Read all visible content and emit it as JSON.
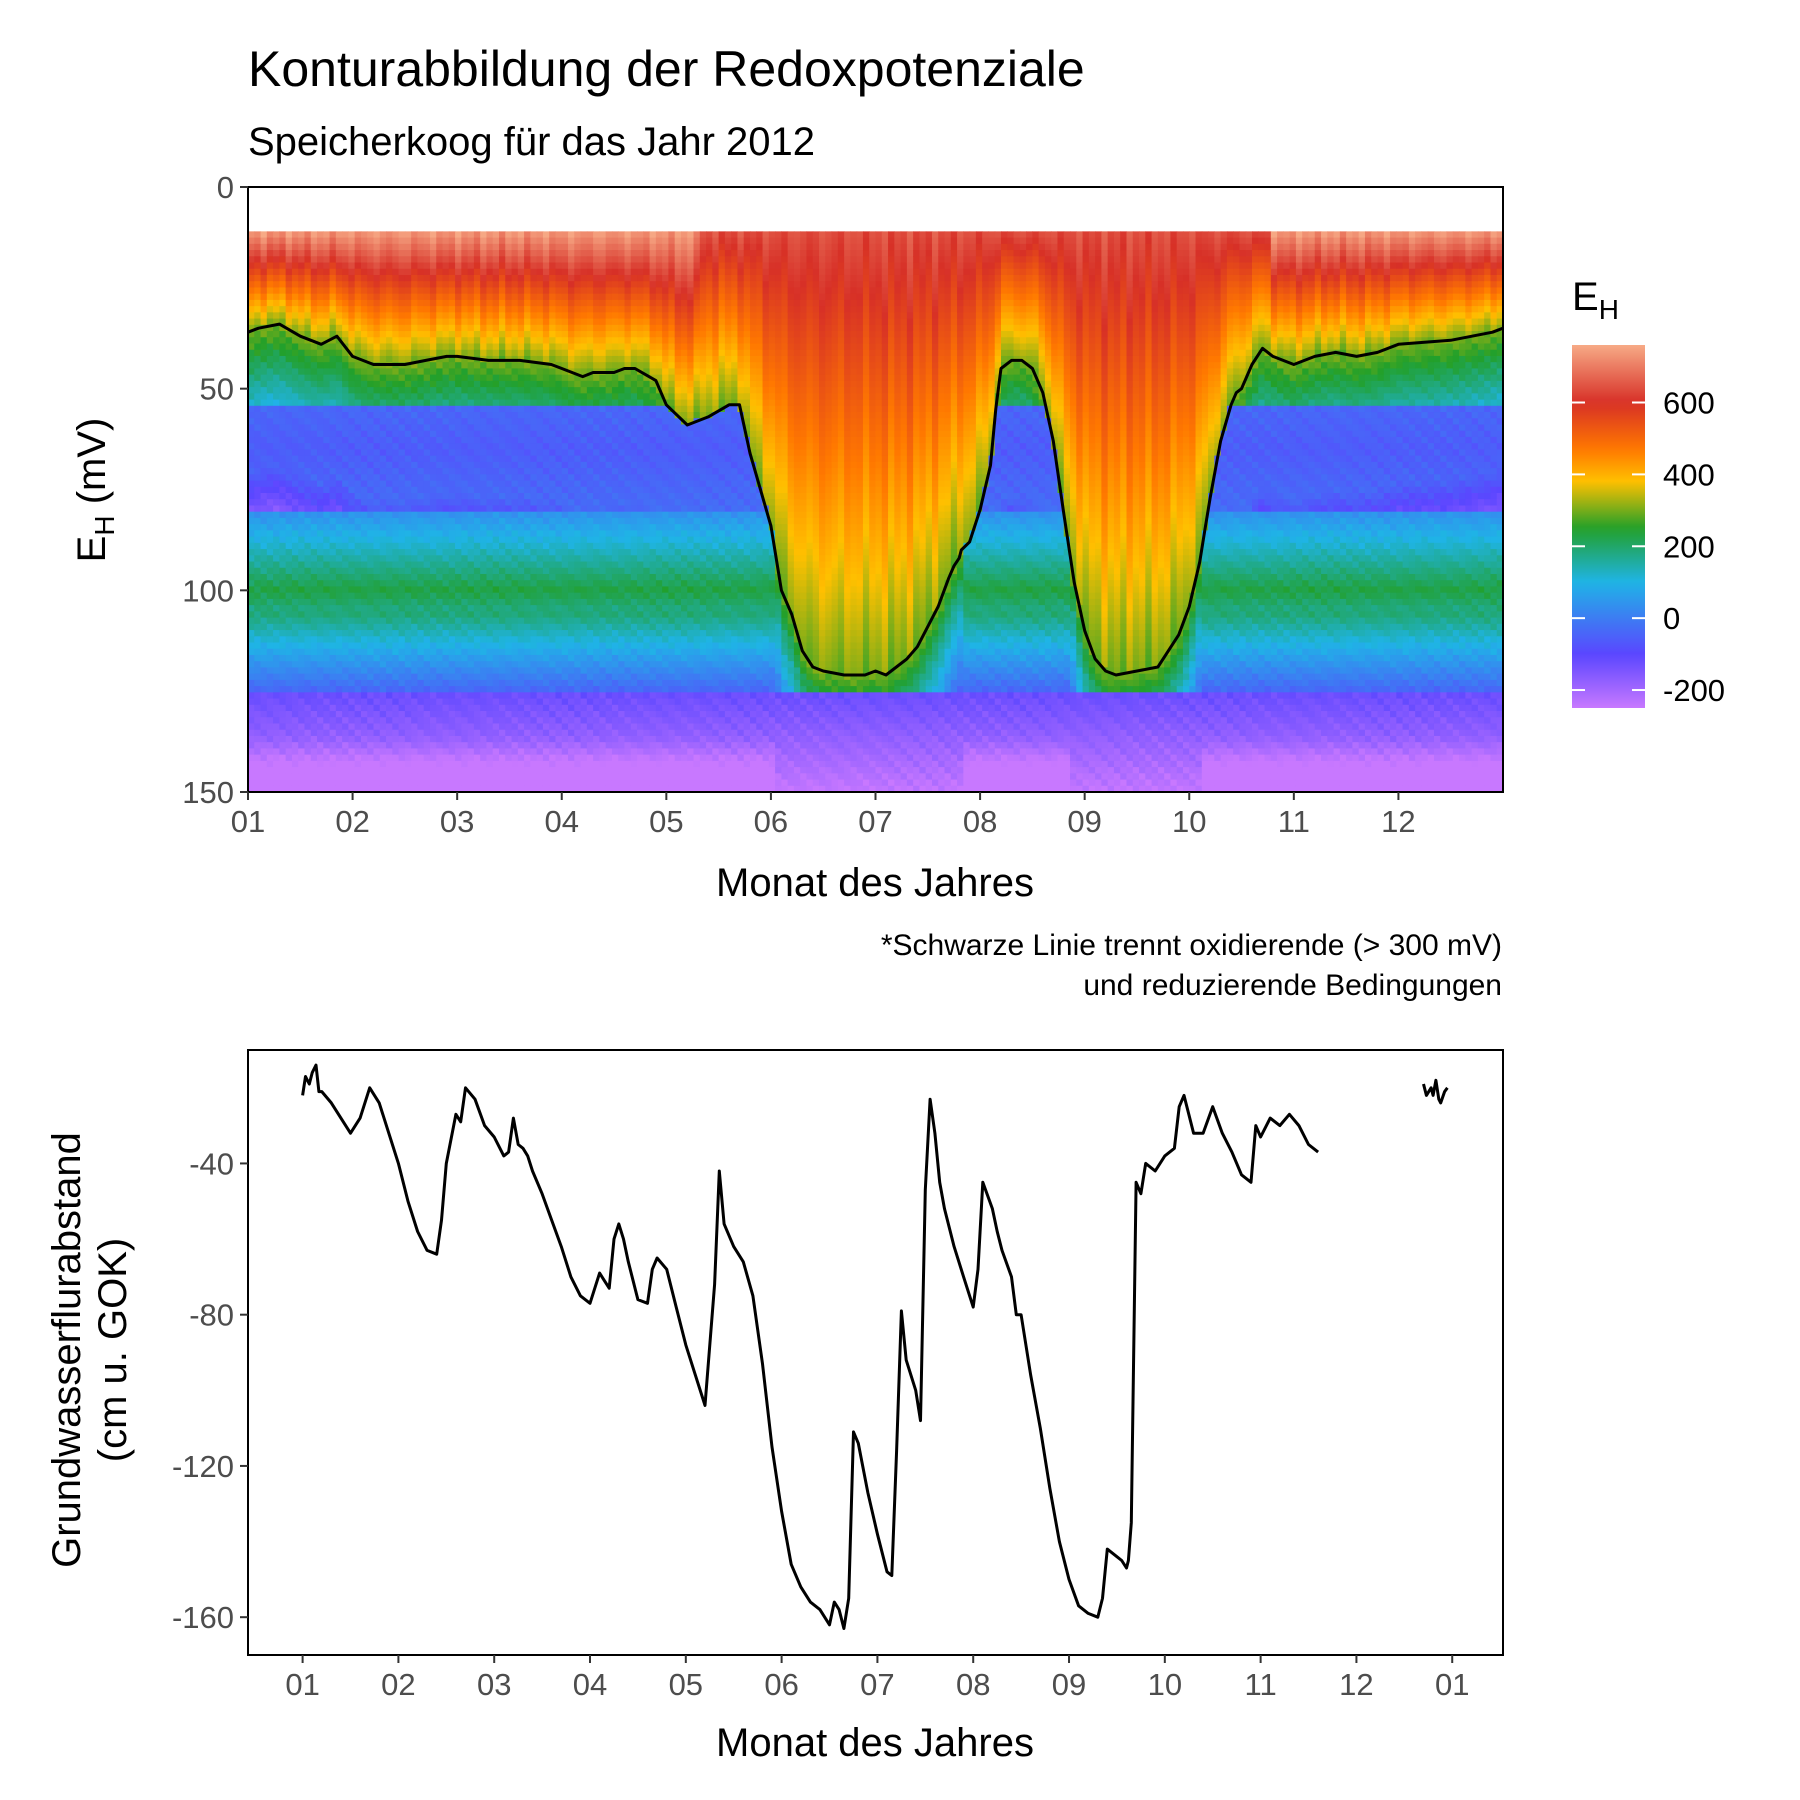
{
  "chart_data": [
    {
      "type": "heatmap",
      "title": "Konturabbildung der Redoxpotenziale",
      "subtitle": "Speicherkoog für das Jahr 2012",
      "xlabel": "Monat des Jahres",
      "ylabel_main": "E",
      "ylabel_sub": "H",
      "ylabel_unit": " (mV)",
      "caption_lines": [
        "*Schwarze Linie trennt oxidierende (> 300 mV)",
        "und reduzierende Bedingungen"
      ],
      "x_ticks": [
        "01",
        "02",
        "03",
        "04",
        "05",
        "06",
        "07",
        "08",
        "09",
        "10",
        "11",
        "12"
      ],
      "x_tick_values": [
        1,
        2,
        3,
        4,
        5,
        6,
        7,
        8,
        9,
        10,
        11,
        12
      ],
      "xlim": [
        1,
        13
      ],
      "y_ticks": [
        "0",
        "50",
        "100",
        "150"
      ],
      "y_tick_values": [
        0,
        50,
        100,
        150
      ],
      "ylim": [
        0,
        150
      ],
      "y_reversed": true,
      "data_depth_range": [
        11,
        150
      ],
      "legend": {
        "title_main": "E",
        "title_sub": "H",
        "labels": [
          "600",
          "400",
          "200",
          "0",
          "-200"
        ],
        "values": [
          600,
          400,
          200,
          0,
          -200
        ],
        "range": [
          -250,
          760
        ],
        "colors": [
          "#f7aa86",
          "#d73027",
          "#ff7800",
          "#ffc000",
          "#22a02a",
          "#1fb4e6",
          "#5a46ff",
          "#c878ff"
        ],
        "color_stops": [
          760,
          600,
          470,
          380,
          250,
          100,
          -100,
          -250
        ]
      },
      "contour_level": 300,
      "contour_line": {
        "x": [
          1.0,
          1.1,
          1.3,
          1.5,
          1.7,
          1.85,
          2.0,
          2.2,
          2.5,
          2.7,
          2.9,
          3.0,
          3.3,
          3.6,
          3.9,
          4.0,
          4.2,
          4.3,
          4.5,
          4.6,
          4.7,
          4.9,
          5.0,
          5.2,
          5.4,
          5.6,
          5.7,
          5.8,
          6.0,
          6.1,
          6.2,
          6.3,
          6.4,
          6.5,
          6.7,
          6.9,
          7.0,
          7.1,
          7.2,
          7.3,
          7.4,
          7.5,
          7.6,
          7.7,
          7.75,
          7.8,
          7.82,
          7.9,
          8.0,
          8.1,
          8.15,
          8.2,
          8.3,
          8.4,
          8.5,
          8.6,
          8.7,
          8.8,
          8.9,
          9.0,
          9.1,
          9.2,
          9.3,
          9.5,
          9.7,
          9.9,
          10.0,
          10.1,
          10.15,
          10.2,
          10.3,
          10.4,
          10.45,
          10.5,
          10.6,
          10.7,
          10.8,
          11.0,
          11.2,
          11.4,
          11.6,
          11.8,
          12.0,
          12.5,
          12.9,
          13.0
        ],
        "y": [
          36,
          35,
          34,
          37,
          39,
          37,
          42,
          44,
          44,
          43,
          42,
          42,
          43,
          43,
          44,
          45,
          47,
          46,
          46,
          45,
          45,
          48,
          54,
          59,
          57,
          54,
          54,
          66,
          84,
          100,
          106,
          115,
          119,
          120,
          121,
          121,
          120,
          121,
          119,
          117,
          114,
          109,
          104,
          97,
          94,
          92,
          90,
          88,
          80,
          69,
          55,
          45,
          43,
          43,
          45,
          51,
          63,
          81,
          98,
          110,
          117,
          120,
          121,
          120,
          119,
          111,
          104,
          93,
          85,
          77,
          63,
          54,
          51,
          50,
          44,
          40,
          42,
          44,
          42,
          41,
          42,
          41,
          39,
          38,
          36,
          35
        ]
      }
    },
    {
      "type": "line",
      "xlabel": "Monat des Jahres",
      "ylabel_lines": [
        "Grundwasserflurabstand",
        "(cm u. GOK)"
      ],
      "x_ticks": [
        "01",
        "02",
        "03",
        "04",
        "05",
        "06",
        "07",
        "08",
        "09",
        "10",
        "11",
        "12",
        "01"
      ],
      "x_tick_values": [
        1,
        2,
        3,
        4,
        5,
        6,
        7,
        8,
        9,
        10,
        11,
        12,
        13
      ],
      "xlim": [
        0.43,
        13.53
      ],
      "y_ticks": [
        "-40",
        "-80",
        "-120",
        "-160"
      ],
      "y_tick_values": [
        -40,
        -80,
        -120,
        -160
      ],
      "ylim": [
        -170,
        -10
      ],
      "series": [
        {
          "segments": [
            {
              "x": [
                1.0,
                1.03,
                1.07,
                1.1,
                1.14,
                1.17,
                1.2,
                1.3,
                1.4,
                1.5,
                1.6,
                1.7,
                1.8,
                1.9,
                2.0,
                2.1,
                2.2,
                2.3,
                2.4,
                2.45,
                2.5,
                2.6,
                2.65,
                2.7,
                2.8,
                2.9,
                3.0,
                3.1,
                3.15,
                3.2,
                3.25,
                3.3,
                3.35,
                3.4,
                3.5,
                3.6,
                3.7,
                3.8,
                3.9,
                4.0,
                4.1,
                4.15,
                4.2,
                4.25,
                4.3,
                4.35,
                4.4,
                4.5,
                4.6,
                4.65,
                4.7,
                4.8,
                4.9,
                5.0,
                5.1,
                5.2,
                5.3,
                5.35,
                5.4,
                5.5,
                5.6,
                5.7,
                5.8,
                5.9,
                6.0,
                6.1,
                6.2,
                6.3,
                6.4,
                6.5,
                6.55,
                6.6,
                6.65,
                6.7,
                6.75,
                6.8,
                6.9,
                7.0,
                7.1,
                7.15,
                7.2,
                7.25,
                7.3,
                7.4,
                7.45,
                7.5,
                7.55,
                7.6,
                7.65,
                7.7,
                7.8,
                7.9,
                8.0,
                8.05,
                8.1,
                8.2,
                8.25,
                8.3,
                8.4,
                8.45,
                8.5,
                8.6,
                8.7,
                8.8,
                8.9,
                9.0,
                9.1,
                9.2,
                9.3,
                9.35,
                9.4,
                9.5,
                9.55,
                9.6,
                9.62,
                9.65,
                9.7,
                9.75,
                9.8,
                9.9,
                10.0,
                10.1,
                10.15,
                10.2,
                10.3,
                10.4,
                10.5,
                10.6,
                10.7,
                10.8,
                10.9,
                10.95,
                11.0,
                11.1,
                11.2,
                11.3,
                11.4,
                11.5,
                11.6
              ],
              "y": [
                -22,
                -17,
                -19,
                -16,
                -14,
                -21,
                -21,
                -24,
                -28,
                -32,
                -28,
                -20,
                -24,
                -32,
                -40,
                -50,
                -58,
                -63,
                -64,
                -55,
                -40,
                -27,
                -29,
                -20,
                -23,
                -30,
                -33,
                -38,
                -37,
                -28,
                -35,
                -36,
                -38,
                -42,
                -48,
                -55,
                -62,
                -70,
                -75,
                -77,
                -69,
                -71,
                -73,
                -60,
                -56,
                -60,
                -66,
                -76,
                -77,
                -68,
                -65,
                -68,
                -78,
                -88,
                -96,
                -104,
                -72,
                -42,
                -56,
                -62,
                -66,
                -75,
                -93,
                -115,
                -132,
                -146,
                -152,
                -156,
                -158,
                -162,
                -156,
                -158,
                -163,
                -155,
                -111,
                -114,
                -127,
                -138,
                -148,
                -149,
                -116,
                -79,
                -92,
                -100,
                -108,
                -47,
                -23,
                -32,
                -45,
                -52,
                -62,
                -70,
                -78,
                -68,
                -45,
                -52,
                -58,
                -63,
                -70,
                -80,
                -80,
                -96,
                -110,
                -126,
                -140,
                -150,
                -157,
                -159,
                -160,
                -155,
                -142,
                -144,
                -145,
                -147,
                -145,
                -135,
                -45,
                -48,
                -40,
                -42,
                -38,
                -36,
                -25,
                -22,
                -32,
                -32,
                -25,
                -32,
                -37,
                -43,
                -45,
                -30,
                -33,
                -28,
                -30,
                -27,
                -30,
                -35,
                -37
              ]
            },
            {
              "x": [
                12.7,
                12.73,
                12.78,
                12.8,
                12.83,
                12.86,
                12.88,
                12.92,
                12.95
              ],
              "y": [
                -19,
                -22,
                -20,
                -22,
                -18,
                -23,
                -24,
                -21,
                -20
              ]
            }
          ]
        }
      ]
    }
  ]
}
